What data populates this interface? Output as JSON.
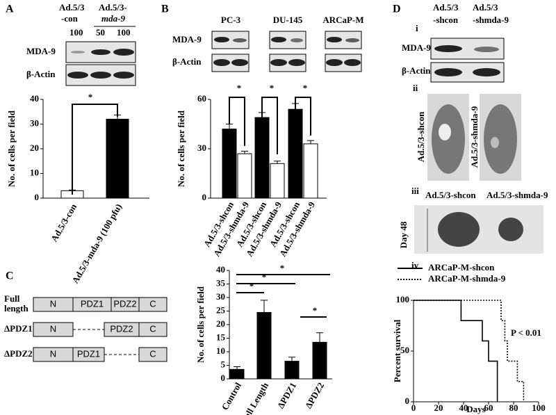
{
  "panel_labels": [
    "A",
    "B",
    "C",
    "D",
    "i",
    "ii",
    "iii",
    "iv"
  ],
  "blot_a": {
    "header": [
      "Ad.5/3",
      "-con",
      "Ad.5/3-",
      "mda-9"
    ],
    "doses": [
      "100",
      "50",
      "100"
    ],
    "rows": [
      "MDA-9",
      "β-Actin"
    ]
  },
  "blot_b": {
    "rows": [
      "MDA-9",
      "β-Actin"
    ]
  },
  "blot_d": {
    "header": [
      "Ad.5/3",
      "-shcon",
      "Ad.5/3",
      "-shmda-9"
    ],
    "rows": [
      "MDA-9",
      "β-Actin"
    ]
  },
  "mice": {
    "labels": [
      "Ad.5/3-shcon",
      "Ad.5/3-shmda-9"
    ]
  },
  "lungs": {
    "labels": [
      "Ad.5/3-shcon",
      "Ad.5/3-shmda-9"
    ],
    "day": "Day 48"
  },
  "diagram": {
    "rows": [
      {
        "label": [
          "Full",
          "length"
        ],
        "domains": [
          "N",
          "PDZ1",
          "PDZ2",
          "C"
        ]
      },
      {
        "label": [
          "ΔPDZ1"
        ],
        "domains": [
          "N",
          "PDZ2",
          "C"
        ]
      },
      {
        "label": [
          "ΔPDZ2"
        ],
        "domains": [
          "N",
          "PDZ1",
          "C"
        ]
      }
    ]
  },
  "chart_data": [
    {
      "type": "bar",
      "ylabel": "No. of cells per field",
      "categories": [
        "Ad.5/3-con",
        "Ad.5/3-mda-9 (100 pfu)"
      ],
      "values": [
        3,
        32
      ],
      "errors": [
        0.3,
        1.7
      ],
      "colors": [
        "#ffffff",
        "#000000"
      ],
      "ylim": [
        0,
        40
      ],
      "yticks": [
        0,
        10,
        20,
        30,
        40
      ],
      "annotations": [
        "*"
      ]
    },
    {
      "type": "grouped_bar",
      "ylabel": "No. of cells per field",
      "groups": [
        "PC-3",
        "DU-145",
        "ARCaP-M"
      ],
      "bar_labels": [
        "Ad.5/3-shcon",
        "Ad.5/3-shmda-9",
        "Ad.5/3-shcon",
        "Ad.5/3-shmda-9",
        "Ad.5/3-shcon",
        "Ad.5/3-shmda-9"
      ],
      "series": [
        {
          "color": "#000000",
          "values": [
            42,
            49,
            54
          ],
          "errors": [
            3,
            3,
            3.5
          ]
        },
        {
          "color": "#ffffff",
          "values": [
            27,
            21,
            33
          ],
          "errors": [
            1.5,
            1.5,
            2
          ]
        }
      ],
      "ylim": [
        0,
        60
      ],
      "yticks": [
        0,
        30,
        60
      ],
      "annotations": [
        "*",
        "*",
        "*"
      ]
    },
    {
      "type": "bar",
      "ylabel": "No. of cells per field",
      "categories": [
        "Control",
        "Full Length",
        "ΔPDZ1",
        "ΔPDZ2"
      ],
      "values": [
        3.5,
        24.5,
        6.5,
        13.5
      ],
      "errors": [
        1,
        4.5,
        1.5,
        3.5
      ],
      "colors": [
        "#000000",
        "#000000",
        "#000000",
        "#000000"
      ],
      "ylim": [
        0,
        40
      ],
      "yticks": [
        0,
        5,
        10,
        15,
        20,
        25,
        30,
        35,
        40
      ],
      "annotations": [
        "*",
        "*",
        "*",
        "*"
      ]
    },
    {
      "type": "line",
      "xlabel": "Days",
      "ylabel": "Percent survival",
      "annotation": "P < 0.01",
      "series": [
        {
          "name": "ARCaP-M-shcon",
          "color": "#000000",
          "dashed": false,
          "x": [
            0,
            38,
            38,
            55,
            55,
            60,
            60,
            67,
            67
          ],
          "values": [
            100,
            100,
            80,
            80,
            60,
            60,
            40,
            40,
            0
          ]
        },
        {
          "name": "ARCaP-M-shmda-9",
          "color": "#000000",
          "dashed": true,
          "x": [
            0,
            70,
            70,
            73,
            73,
            75,
            75,
            83,
            83,
            88,
            88
          ],
          "values": [
            100,
            100,
            80,
            80,
            60,
            60,
            40,
            40,
            20,
            20,
            0
          ]
        }
      ],
      "xlim": [
        0,
        100
      ],
      "xticks": [
        0,
        20,
        40,
        60,
        80,
        100
      ],
      "ylim": [
        0,
        100
      ],
      "yticks": [
        0,
        50,
        100
      ]
    }
  ]
}
